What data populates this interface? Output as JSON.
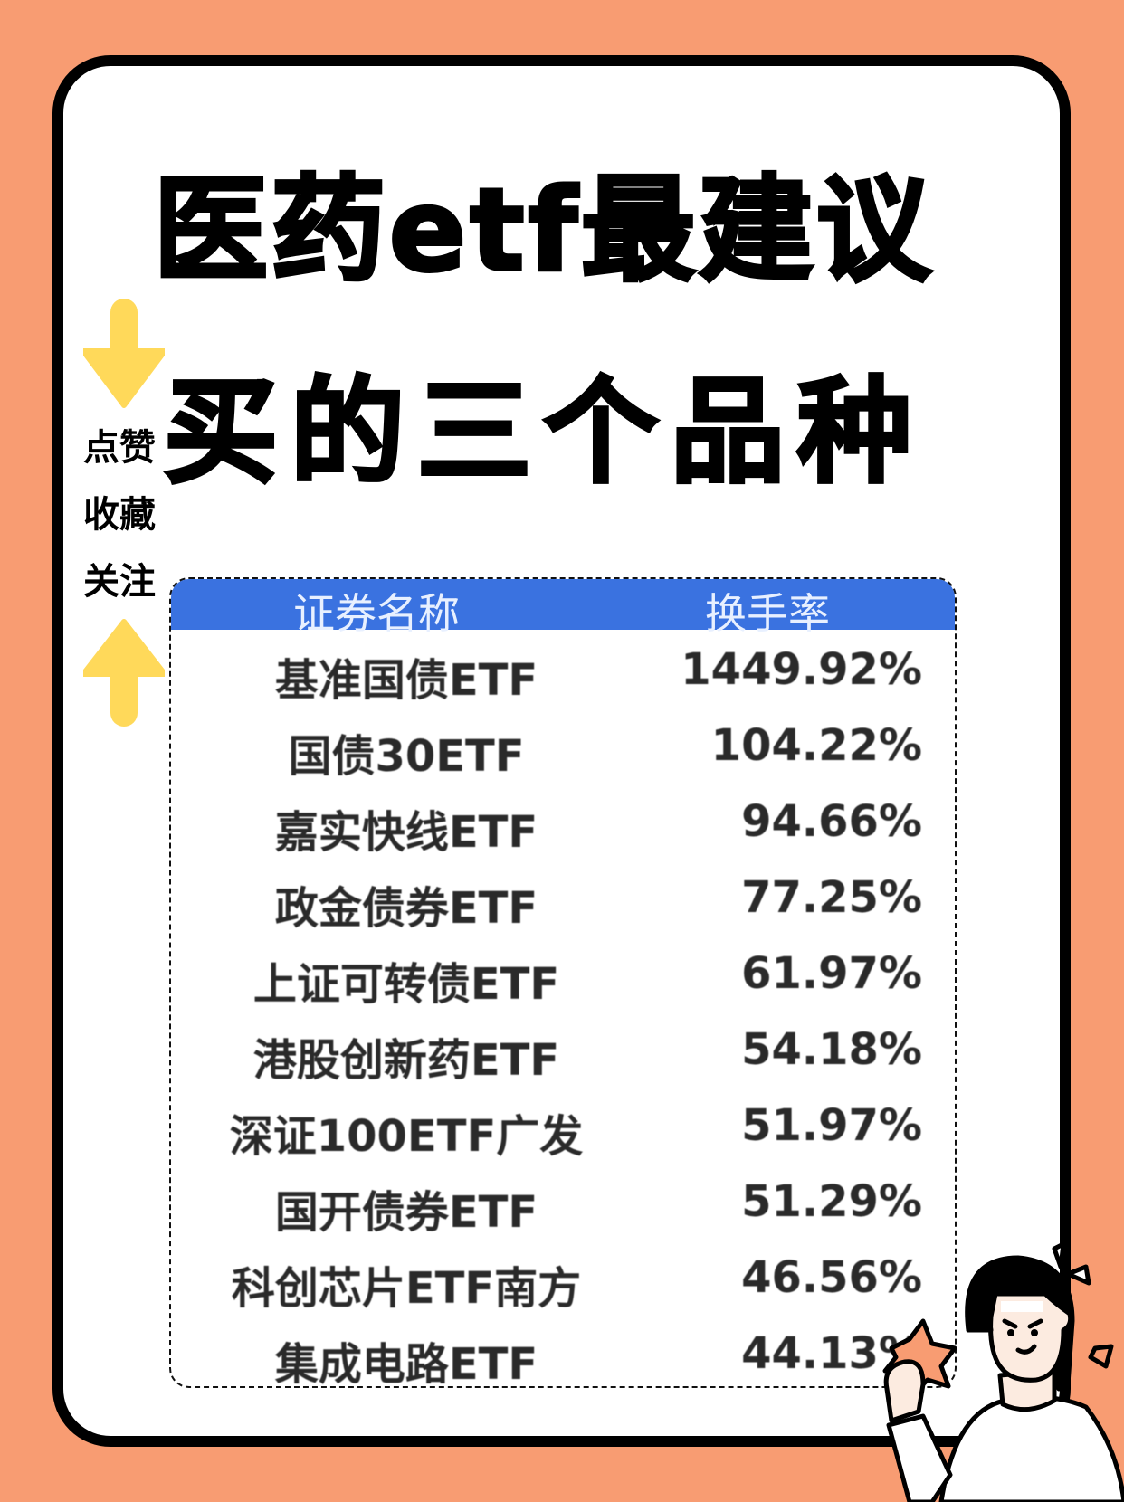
{
  "title": {
    "line1": "医药etf最建议",
    "line2": "买的三个品种"
  },
  "side_labels": [
    "点赞",
    "收藏",
    "关注"
  ],
  "colors": {
    "background": "#F89C72",
    "arrow": "#FFD95A",
    "header": "#3A72E0"
  },
  "icons": {
    "top": "arrow-down-icon",
    "bottom": "arrow-up-icon"
  },
  "table": {
    "headers": [
      "证券名称",
      "换手率"
    ],
    "rows": [
      {
        "name": "基准国债ETF",
        "value": "1449.92%"
      },
      {
        "name": "国债30ETF",
        "value": "104.22%"
      },
      {
        "name": "嘉实快线ETF",
        "value": "94.66%"
      },
      {
        "name": "政金债券ETF",
        "value": "77.25%"
      },
      {
        "name": "上证可转债ETF",
        "value": "61.97%"
      },
      {
        "name": "港股创新药ETF",
        "value": "54.18%"
      },
      {
        "name": "深证100ETF广发",
        "value": "51.97%"
      },
      {
        "name": "国开债券ETF",
        "value": "51.29%"
      },
      {
        "name": "科创芯片ETF南方",
        "value": "46.56%"
      },
      {
        "name": "集成电路ETF",
        "value": "44.13%"
      }
    ]
  }
}
